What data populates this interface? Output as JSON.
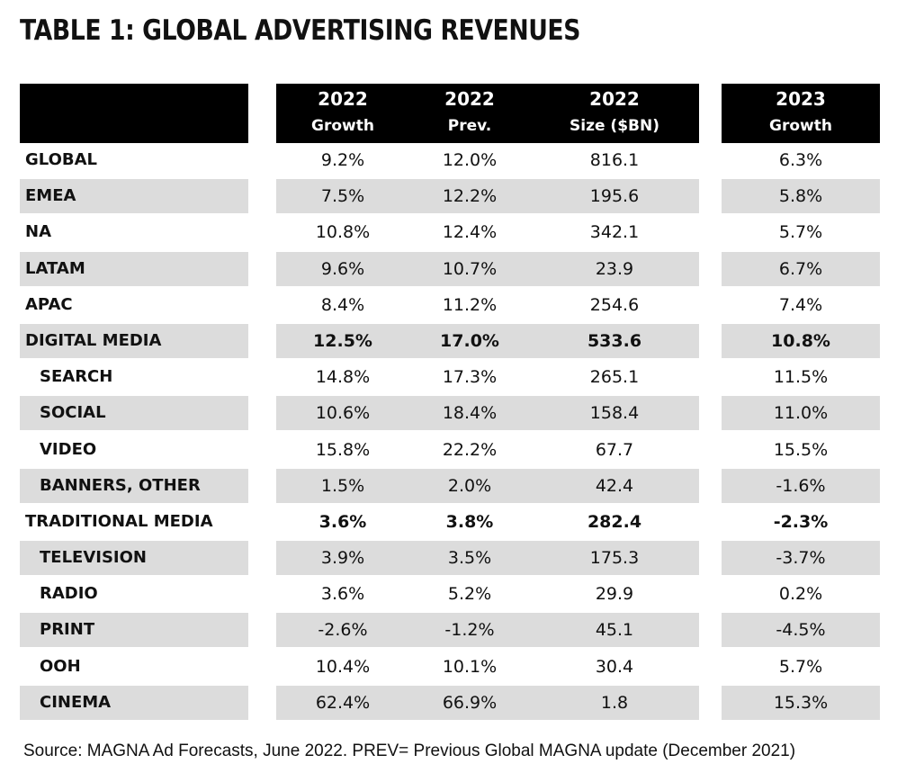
{
  "title": "TABLE 1: GLOBAL ADVERTISING REVENUES",
  "columns": [
    {
      "year": "2022",
      "sub": "Growth"
    },
    {
      "year": "2022",
      "sub": "Prev."
    },
    {
      "year": "2022",
      "sub": "Size ($BN)"
    },
    {
      "year": "2023",
      "sub": "Growth"
    }
  ],
  "rows": [
    {
      "label": "GLOBAL",
      "growth_2022": "9.2%",
      "prev_2022": "12.0%",
      "size_2022": "816.1",
      "growth_2023": "6.3%"
    },
    {
      "label": "EMEA",
      "growth_2022": "7.5%",
      "prev_2022": "12.2%",
      "size_2022": "195.6",
      "growth_2023": "5.8%"
    },
    {
      "label": "NA",
      "growth_2022": "10.8%",
      "prev_2022": "12.4%",
      "size_2022": "342.1",
      "growth_2023": "5.7%"
    },
    {
      "label": "LATAM",
      "growth_2022": "9.6%",
      "prev_2022": "10.7%",
      "size_2022": "23.9",
      "growth_2023": "6.7%"
    },
    {
      "label": "APAC",
      "growth_2022": "8.4%",
      "prev_2022": "11.2%",
      "size_2022": "254.6",
      "growth_2023": "7.4%"
    },
    {
      "label": "DIGITAL MEDIA",
      "growth_2022": "12.5%",
      "prev_2022": "17.0%",
      "size_2022": "533.6",
      "growth_2023": "10.8%"
    },
    {
      "label": "SEARCH",
      "growth_2022": "14.8%",
      "prev_2022": "17.3%",
      "size_2022": "265.1",
      "growth_2023": "11.5%"
    },
    {
      "label": "SOCIAL",
      "growth_2022": "10.6%",
      "prev_2022": "18.4%",
      "size_2022": "158.4",
      "growth_2023": "11.0%"
    },
    {
      "label": "VIDEO",
      "growth_2022": "15.8%",
      "prev_2022": "22.2%",
      "size_2022": "67.7",
      "growth_2023": "15.5%"
    },
    {
      "label": "BANNERS, OTHER",
      "growth_2022": "1.5%",
      "prev_2022": "2.0%",
      "size_2022": "42.4",
      "growth_2023": "-1.6%"
    },
    {
      "label": "TRADITIONAL MEDIA",
      "growth_2022": "3.6%",
      "prev_2022": "3.8%",
      "size_2022": "282.4",
      "growth_2023": "-2.3%"
    },
    {
      "label": "TELEVISION",
      "growth_2022": "3.9%",
      "prev_2022": "3.5%",
      "size_2022": "175.3",
      "growth_2023": "-3.7%"
    },
    {
      "label": "RADIO",
      "growth_2022": "3.6%",
      "prev_2022": "5.2%",
      "size_2022": "29.9",
      "growth_2023": "0.2%"
    },
    {
      "label": "PRINT",
      "growth_2022": "-2.6%",
      "prev_2022": "-1.2%",
      "size_2022": "45.1",
      "growth_2023": "-4.5%"
    },
    {
      "label": "OOH",
      "growth_2022": "10.4%",
      "prev_2022": "10.1%",
      "size_2022": "30.4",
      "growth_2023": "5.7%"
    },
    {
      "label": "CINEMA",
      "growth_2022": "62.4%",
      "prev_2022": "66.9%",
      "size_2022": "1.8",
      "growth_2023": "15.3%"
    }
  ],
  "source": "Source: MAGNA Ad Forecasts, June 2022. PREV= Previous Global MAGNA update (December 2021)",
  "colors": {
    "header_bg": "#000000",
    "header_text": "#ffffff",
    "row_shade": "#dcdcdc"
  }
}
